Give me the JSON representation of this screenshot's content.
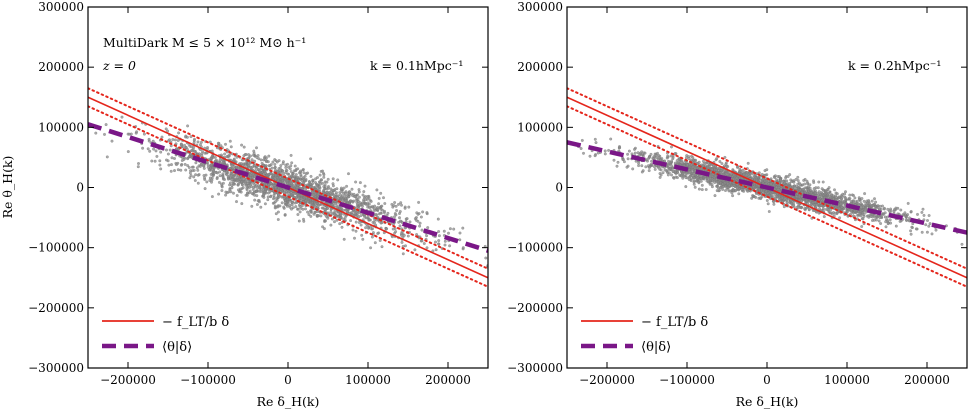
{
  "chart_data": [
    {
      "type": "scatter",
      "panel": "left",
      "xlabel": "Re δ_H(k)",
      "ylabel": "Re θ_H(k)",
      "xlim": [
        -250000,
        250000
      ],
      "ylim": [
        -300000,
        300000
      ],
      "xticks": [
        -200000,
        -100000,
        0,
        100000,
        200000
      ],
      "yticks": [
        -300000,
        -200000,
        -100000,
        0,
        100000,
        200000,
        300000
      ],
      "xtick_labels": [
        "−200000",
        "−100000",
        "0",
        "100000",
        "200000"
      ],
      "ytick_labels": [
        "−300000",
        "−200000",
        "−100000",
        "0",
        "100000",
        "200000",
        "300000"
      ],
      "annotation_main": "MultiDark M ≤ 5 × 10¹² M⊙ h⁻¹",
      "annotation_z": "z = 0",
      "annotation_k": "k = 0.1hMpc⁻¹",
      "scatter": {
        "name": "data points",
        "color": "#8c8c8c",
        "slope": -0.42,
        "spread": 18000,
        "n": 2200,
        "seed": 7
      },
      "series": [
        {
          "name": "-f_LT/b δ",
          "style": "solid",
          "color": "#e4261c",
          "slope": -0.6,
          "points": [
            [
              -250000,
              150000
            ],
            [
              250000,
              -150000
            ]
          ]
        },
        {
          "name": "-f_LT/b δ upper",
          "style": "dotted",
          "color": "#e4261c",
          "slope": -0.6,
          "offset": 15000
        },
        {
          "name": "-f_LT/b δ lower",
          "style": "dotted",
          "color": "#e4261c",
          "slope": -0.6,
          "offset": -15000
        },
        {
          "name": "⟨θ|δ⟩",
          "style": "dashed",
          "color": "#7a1787",
          "slope": -0.42,
          "points": [
            [
              -250000,
              105000
            ],
            [
              250000,
              -105000
            ]
          ]
        }
      ],
      "legend": [
        {
          "label": "− f_LT/b δ",
          "color": "#e4261c",
          "style": "solid"
        },
        {
          "label": "⟨θ|δ⟩",
          "color": "#7a1787",
          "style": "dashed"
        }
      ],
      "legend_position": "bottom-left"
    },
    {
      "type": "scatter",
      "panel": "right",
      "xlabel": "Re δ_H(k)",
      "ylabel": "",
      "xlim": [
        -250000,
        250000
      ],
      "ylim": [
        -300000,
        300000
      ],
      "xticks": [
        -200000,
        -100000,
        0,
        100000,
        200000
      ],
      "yticks": [
        -300000,
        -200000,
        -100000,
        0,
        100000,
        200000,
        300000
      ],
      "xtick_labels": [
        "−200000",
        "−100000",
        "0",
        "100000",
        "200000"
      ],
      "ytick_labels": [
        "−300000",
        "−200000",
        "−100000",
        "0",
        "100000",
        "200000",
        "300000"
      ],
      "annotation_k": "k = 0.2hMpc⁻¹",
      "scatter": {
        "name": "data points",
        "color": "#8c8c8c",
        "slope": -0.3,
        "spread": 10000,
        "n": 2600,
        "seed": 13
      },
      "series": [
        {
          "name": "-f_LT/b δ",
          "style": "solid",
          "color": "#e4261c",
          "slope": -0.6,
          "points": [
            [
              -250000,
              150000
            ],
            [
              250000,
              -150000
            ]
          ]
        },
        {
          "name": "-f_LT/b δ upper",
          "style": "dotted",
          "color": "#e4261c",
          "slope": -0.6,
          "offset": 15000
        },
        {
          "name": "-f_LT/b δ lower",
          "style": "dotted",
          "color": "#e4261c",
          "slope": -0.6,
          "offset": -15000
        },
        {
          "name": "⟨θ|δ⟩",
          "style": "dashed",
          "color": "#7a1787",
          "slope": -0.3,
          "points": [
            [
              -250000,
              75000
            ],
            [
              250000,
              -75000
            ]
          ]
        }
      ],
      "legend": [
        {
          "label": "− f_LT/b δ",
          "color": "#e4261c",
          "style": "solid"
        },
        {
          "label": "⟨θ|δ⟩",
          "color": "#7a1787",
          "style": "dashed"
        }
      ],
      "legend_position": "bottom-left"
    }
  ]
}
